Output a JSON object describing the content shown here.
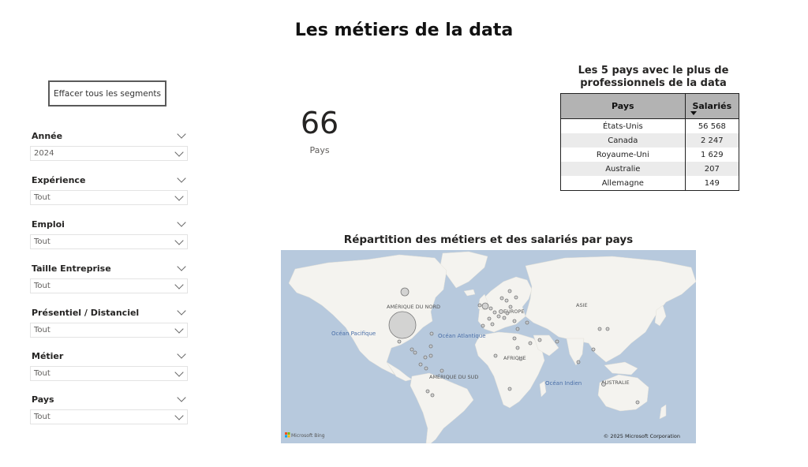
{
  "page": {
    "title": "Les métiers de la data"
  },
  "clear_button": {
    "label": "Effacer tous les segments"
  },
  "slicers": [
    {
      "title": "Année",
      "value": "2024"
    },
    {
      "title": "Expérience",
      "value": "Tout"
    },
    {
      "title": "Emploi",
      "value": "Tout"
    },
    {
      "title": "Taille Entreprise",
      "value": "Tout"
    },
    {
      "title": "Présentiel / Distanciel",
      "value": "Tout"
    },
    {
      "title": "Métier",
      "value": "Tout"
    },
    {
      "title": "Pays",
      "value": "Tout"
    }
  ],
  "kpi": {
    "value": "66",
    "label": "Pays"
  },
  "top_countries": {
    "title": "Les 5 pays avec le plus de professionnels de la data",
    "columns": [
      "Pays",
      "Salariés"
    ],
    "rows": [
      {
        "pays": "États-Unis",
        "salaries": "56 568"
      },
      {
        "pays": "Canada",
        "salaries": "2 247"
      },
      {
        "pays": "Royaume-Uni",
        "salaries": "1 629"
      },
      {
        "pays": "Australie",
        "salaries": "207"
      },
      {
        "pays": "Allemagne",
        "salaries": "149"
      }
    ]
  },
  "map": {
    "title": "Répartition des métiers et des salariés par pays",
    "labels": {
      "north_america": "AMÉRIQUE DU NORD",
      "europe": "EUROPE",
      "asia": "ASIE",
      "africa": "AFRIQUE",
      "south_america": "AMÉRIQUE DU SUD",
      "australia": "AUSTRALIE",
      "pacific": "Océan Pacifique",
      "atlantic": "Océan Atlantique",
      "indian": "Océan Indien"
    },
    "attribution_left": "Microsoft Bing",
    "attribution_right": "© 2025 Microsoft Corporation",
    "colors": {
      "water": "#b7c9dd",
      "land": "#f4f3ef",
      "bubble_fill": "#c8c8c8",
      "bubble_stroke": "#777777"
    }
  },
  "icons": {
    "slicer_chevron": "chevron-down-icon",
    "sort": "sort-descending-icon",
    "bing_logo": "microsoft-logo-icon"
  }
}
